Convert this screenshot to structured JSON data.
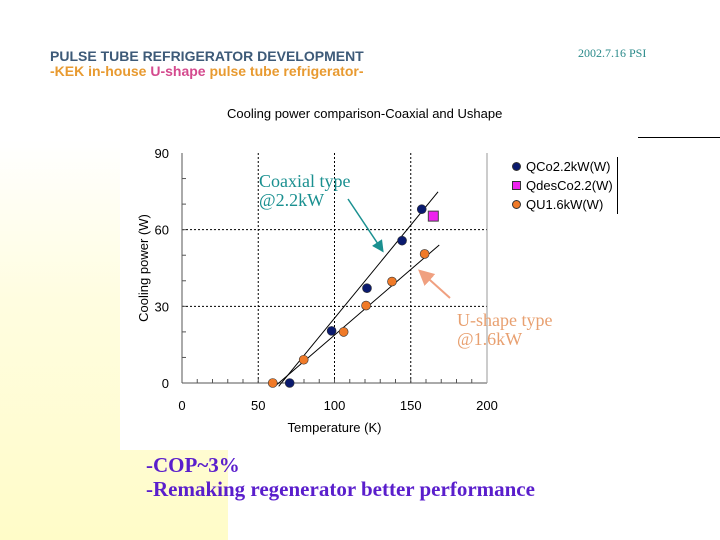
{
  "header": {
    "title": "PULSE TUBE REFRIGERATOR DEVELOPMENT",
    "subtitle_pre": "-KEK in-house ",
    "subtitle_mid": "U-shape",
    "subtitle_post": " pulse tube refrigerator-",
    "date": "2002.7.16  PSI"
  },
  "annotations": {
    "coaxial_1": "Coaxial type",
    "coaxial_2": "@2.2kW",
    "ushape_1": "U-shape type",
    "ushape_2": "@1.6kW"
  },
  "bullets": [
    "-COP~3%",
    "-Remaking regenerator better performance"
  ],
  "colors": {
    "blue": "#0a1a6e",
    "magenta": "#ee22ee",
    "orange": "#f07a28",
    "coax_text": "#1a9090",
    "ushape_text": "#e8a070",
    "bullet_text": "#5a1ecc"
  },
  "chart_data": {
    "type": "scatter",
    "title": "Cooling power comparison-Coaxial and Ushape",
    "xlabel": "Temperature (K)",
    "ylabel": "Cooling power (W)",
    "xlim": [
      0,
      200
    ],
    "ylim": [
      0,
      90
    ],
    "xticks": [
      "0",
      "50",
      "100",
      "150",
      "200"
    ],
    "yticks": [
      "0",
      "30",
      "60",
      "90"
    ],
    "grid": "dotted at x=50,100,150 and y=30,60",
    "legend": "right",
    "series": [
      {
        "name": "QCo2.2kW(W)",
        "marker": "circle",
        "color": "#0a1a6e",
        "x": [
          70.6,
          98.1,
          121.3,
          144.3,
          157.2
        ],
        "y": [
          0,
          20.4,
          37.1,
          55.7,
          68.0
        ],
        "fit": [
          [
            63.4,
            -1.3
          ],
          [
            167.9,
            74.8
          ]
        ]
      },
      {
        "name": "QdesCo2.2(W)",
        "marker": "square",
        "color": "#ee22ee",
        "x": [
          164.8
        ],
        "y": [
          65.3
        ]
      },
      {
        "name": "QU1.6kW(W)",
        "marker": "circle",
        "color": "#f07a28",
        "x": [
          59.5,
          79.8,
          106.0,
          120.7,
          137.7,
          159.1
        ],
        "y": [
          0,
          9.1,
          20.0,
          30.3,
          39.7,
          50.5
        ],
        "fit": [
          [
            62.3,
            -0.6
          ],
          [
            168.7,
            54.0
          ]
        ]
      }
    ]
  }
}
